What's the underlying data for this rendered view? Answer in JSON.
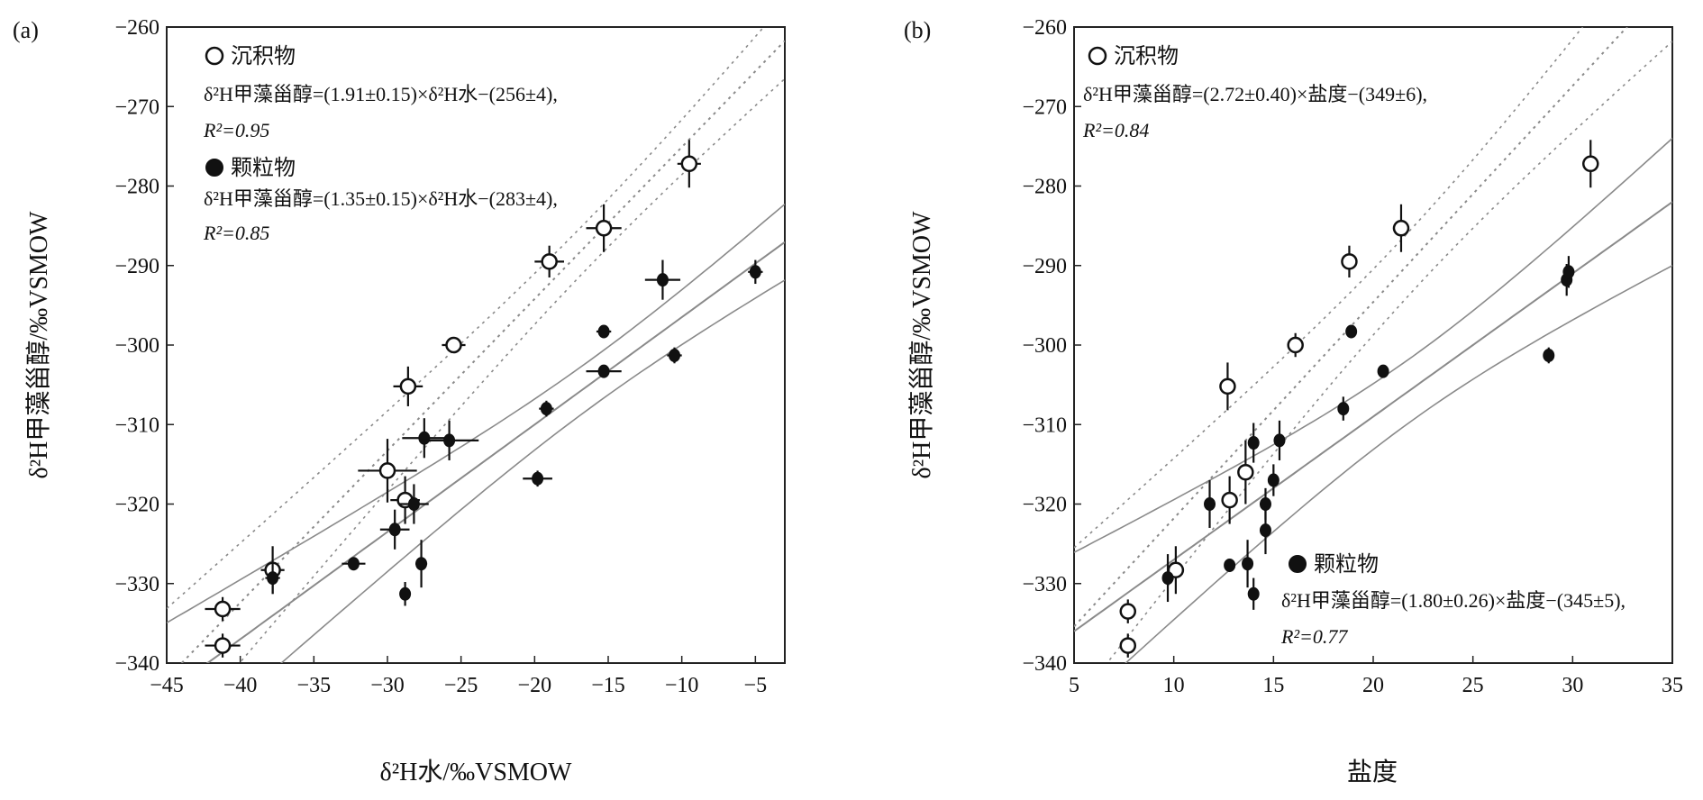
{
  "chart_data": [
    {
      "type": "scatter",
      "panel_label": "(a)",
      "xlabel": "δ²H水/‰VSMOW",
      "ylabel": "δ²H甲藻甾醇/‰VSMOW",
      "xlim": [
        -45,
        -3
      ],
      "ylim": [
        -340,
        -260
      ],
      "xticks": [
        -45,
        -40,
        -35,
        -30,
        -25,
        -20,
        -15,
        -10,
        -5
      ],
      "yticks": [
        -260,
        -270,
        -280,
        -290,
        -300,
        -310,
        -320,
        -330,
        -340
      ],
      "xtick_labels": [
        "−45",
        "−40",
        "−35",
        "−30",
        "−25",
        "−20",
        "−15",
        "−10",
        "−5"
      ],
      "ytick_labels": [
        "−260",
        "−270",
        "−280",
        "−290",
        "−300",
        "−310",
        "−320",
        "−330",
        "−340"
      ],
      "grid": false,
      "legend": [
        {
          "marker": "open-circle",
          "label": "沉积物",
          "equation": "δ²H甲藻甾醇=(1.91±0.15)×δ²H水−(256±4),",
          "r2": "R²=0.95"
        },
        {
          "marker": "filled-circle",
          "label": "颗粒物",
          "equation": "δ²H甲藻甾醇=(1.35±0.15)×δ²H水−(283±4),",
          "r2": "R²=0.85"
        }
      ],
      "series": [
        {
          "name": "沉积物",
          "marker": "open",
          "points": [
            {
              "x": -41.2,
              "y": -333.2,
              "xerr": 1.2,
              "yerr": 1.5
            },
            {
              "x": -41.2,
              "y": -337.8,
              "xerr": 1.2,
              "yerr": 1.5
            },
            {
              "x": -37.8,
              "y": -328.3,
              "xerr": 0.8,
              "yerr": 3.0
            },
            {
              "x": -30.0,
              "y": -315.8,
              "xerr": 2.0,
              "yerr": 4.0
            },
            {
              "x": -28.8,
              "y": -319.5,
              "xerr": 1.0,
              "yerr": 3.0
            },
            {
              "x": -28.6,
              "y": -305.2,
              "xerr": 1.0,
              "yerr": 2.5
            },
            {
              "x": -25.5,
              "y": -300.0,
              "xerr": 0.8,
              "yerr": 1.0
            },
            {
              "x": -19.0,
              "y": -289.5,
              "xerr": 1.0,
              "yerr": 2.0
            },
            {
              "x": -15.3,
              "y": -285.3,
              "xerr": 1.2,
              "yerr": 3.0
            },
            {
              "x": -9.5,
              "y": -277.2,
              "xerr": 0.8,
              "yerr": 3.0
            }
          ]
        },
        {
          "name": "颗粒物",
          "marker": "filled",
          "points": [
            {
              "x": -37.8,
              "y": -329.3,
              "xerr": 0.5,
              "yerr": 2.0
            },
            {
              "x": -32.3,
              "y": -327.5,
              "xerr": 0.8,
              "yerr": 0.5
            },
            {
              "x": -29.5,
              "y": -323.2,
              "xerr": 1.0,
              "yerr": 2.5
            },
            {
              "x": -28.8,
              "y": -331.3,
              "xerr": 0.3,
              "yerr": 1.5
            },
            {
              "x": -28.2,
              "y": -320.0,
              "xerr": 1.0,
              "yerr": 2.5
            },
            {
              "x": -27.7,
              "y": -327.5,
              "xerr": 0.4,
              "yerr": 3.0
            },
            {
              "x": -27.5,
              "y": -311.7,
              "xerr": 1.5,
              "yerr": 2.5
            },
            {
              "x": -25.8,
              "y": -312.0,
              "xerr": 2.0,
              "yerr": 2.5
            },
            {
              "x": -19.8,
              "y": -316.8,
              "xerr": 1.0,
              "yerr": 1.0
            },
            {
              "x": -19.2,
              "y": -308.0,
              "xerr": 0.5,
              "yerr": 1.0
            },
            {
              "x": -15.3,
              "y": -298.3,
              "xerr": 0.5,
              "yerr": 0.5
            },
            {
              "x": -15.3,
              "y": -303.3,
              "xerr": 1.2,
              "yerr": 0.5
            },
            {
              "x": -11.3,
              "y": -291.8,
              "xerr": 1.2,
              "yerr": 2.5
            },
            {
              "x": -10.5,
              "y": -301.3,
              "xerr": 0.5,
              "yerr": 1.0
            },
            {
              "x": -5.0,
              "y": -290.8,
              "xerr": 0.5,
              "yerr": 1.5
            }
          ]
        }
      ],
      "lines": {
        "sediment": {
          "style": "dotted",
          "slope": 1.91,
          "intercept": -256,
          "band_upper": {
            "a": 1.91,
            "b": -256,
            "c": 6.0
          },
          "band_lower": {
            "a": 1.91,
            "b": -256,
            "c": -6.0
          }
        },
        "particulate": {
          "style": "solid",
          "slope": 1.35,
          "intercept": -283,
          "band_upper": {
            "a": 1.35,
            "b": -283,
            "c": 6.0
          },
          "band_lower": {
            "a": 1.35,
            "b": -283,
            "c": -6.0
          }
        }
      }
    },
    {
      "type": "scatter",
      "panel_label": "(b)",
      "xlabel": "盐度",
      "ylabel": "δ²H甲藻甾醇/‰VSMOW",
      "xlim": [
        5,
        35
      ],
      "ylim": [
        -340,
        -260
      ],
      "xticks": [
        5,
        10,
        15,
        20,
        25,
        30,
        35
      ],
      "yticks": [
        -260,
        -270,
        -280,
        -290,
        -300,
        -310,
        -320,
        -330,
        -340
      ],
      "xtick_labels": [
        "5",
        "10",
        "15",
        "20",
        "25",
        "30",
        "35"
      ],
      "ytick_labels": [
        "−260",
        "−270",
        "−280",
        "−290",
        "−300",
        "−310",
        "−320",
        "−330",
        "−340"
      ],
      "grid": false,
      "legend": [
        {
          "marker": "open-circle",
          "label": "沉积物",
          "equation": "δ²H甲藻甾醇=(2.72±0.40)×盐度−(349±6),",
          "r2": "R²=0.84"
        },
        {
          "marker": "filled-circle",
          "label": "颗粒物",
          "equation": "δ²H甲藻甾醇=(1.80±0.26)×盐度−(345±5),",
          "r2": "R²=0.77"
        }
      ],
      "series": [
        {
          "name": "沉积物",
          "marker": "open",
          "points": [
            {
              "x": 7.7,
              "y": -333.5,
              "yerr": 1.5
            },
            {
              "x": 7.7,
              "y": -337.8,
              "yerr": 1.5
            },
            {
              "x": 10.1,
              "y": -328.3,
              "yerr": 3.0
            },
            {
              "x": 12.7,
              "y": -305.2,
              "yerr": 3.0
            },
            {
              "x": 12.8,
              "y": -319.5,
              "yerr": 3.0
            },
            {
              "x": 13.6,
              "y": -316.0,
              "yerr": 4.0
            },
            {
              "x": 16.1,
              "y": -300.0,
              "yerr": 1.5
            },
            {
              "x": 18.8,
              "y": -289.5,
              "yerr": 2.0
            },
            {
              "x": 21.4,
              "y": -285.3,
              "yerr": 3.0
            },
            {
              "x": 30.9,
              "y": -277.2,
              "yerr": 3.0
            }
          ]
        },
        {
          "name": "颗粒物",
          "marker": "filled",
          "points": [
            {
              "x": 9.7,
              "y": -329.3,
              "yerr": 3.0
            },
            {
              "x": 11.8,
              "y": -320.0,
              "yerr": 3.0
            },
            {
              "x": 12.8,
              "y": -327.7,
              "yerr": 0.5
            },
            {
              "x": 13.7,
              "y": -327.5,
              "yerr": 3.0
            },
            {
              "x": 14.0,
              "y": -312.3,
              "yerr": 2.5
            },
            {
              "x": 14.0,
              "y": -331.3,
              "yerr": 2.0
            },
            {
              "x": 14.6,
              "y": -320.0,
              "yerr": 2.0
            },
            {
              "x": 14.6,
              "y": -323.3,
              "yerr": 3.0
            },
            {
              "x": 15.0,
              "y": -317.0,
              "yerr": 2.0
            },
            {
              "x": 15.3,
              "y": -312.0,
              "yerr": 2.5
            },
            {
              "x": 18.5,
              "y": -308.0,
              "yerr": 1.5
            },
            {
              "x": 18.9,
              "y": -298.3,
              "yerr": 0.5
            },
            {
              "x": 20.5,
              "y": -303.3,
              "yerr": 0.5
            },
            {
              "x": 28.8,
              "y": -301.3,
              "yerr": 1.0
            },
            {
              "x": 29.7,
              "y": -291.8,
              "yerr": 2.0
            },
            {
              "x": 29.8,
              "y": -290.8,
              "yerr": 2.0
            }
          ]
        }
      ],
      "lines": {
        "sediment": {
          "style": "dotted",
          "slope": 2.72,
          "intercept": -349,
          "band_upper": {
            "a": 2.72,
            "b": -349,
            "c": 8.0
          },
          "band_lower": {
            "a": 2.72,
            "b": -349,
            "c": -8.0
          }
        },
        "particulate": {
          "style": "solid",
          "slope": 1.8,
          "intercept": -345,
          "band_upper": {
            "a": 1.8,
            "b": -345,
            "c": 8.0
          },
          "band_lower": {
            "a": 1.8,
            "b": -345,
            "c": -8.0
          }
        }
      }
    }
  ]
}
